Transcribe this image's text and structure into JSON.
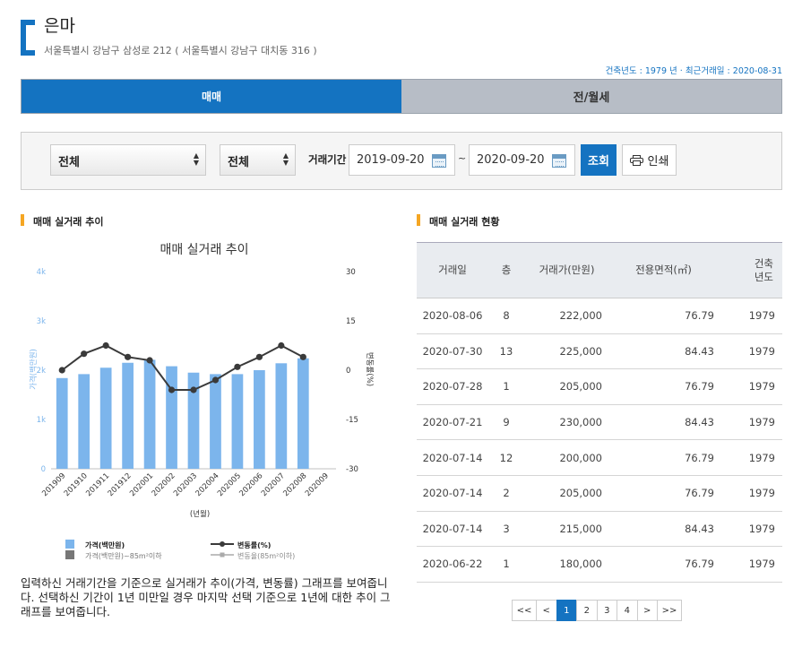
{
  "header": {
    "apt_name": "은마",
    "address": "서울특별시 강남구 삼성로 212 ( 서울특별시 강남구 대치동 316 )",
    "meta": "건축년도 : 1979 년  ·  최근거래일 : 2020-08-31"
  },
  "tabs": [
    {
      "label": "매매",
      "active": true
    },
    {
      "label": "전/월세",
      "active": false
    }
  ],
  "filter": {
    "select1": "전체",
    "select2": "전체",
    "period_label": "거래기간",
    "date_from": "2019-09-20",
    "date_sep": "~",
    "date_to": "2020-09-20",
    "search_label": "조회",
    "print_label": "인쇄"
  },
  "left_section": {
    "title": "매매 실거래 추이",
    "description": "입력하신 거래기간을 기준으로 실거래가 추이(가격, 변동률) 그래프를 보여줍니다. 선택하신 기간이 1년 미만일 경우 마지막 선택 기준으로 1년에 대한 추이 그래프를 보여줍니다."
  },
  "right_section": {
    "title": "매매 실거래 현황"
  },
  "chart_data": {
    "type": "bar",
    "title": "매매 실거래 추이",
    "xlabel": "(년월)",
    "ylabel": "가격(백만원)",
    "y2label": "변동률(%)",
    "categories": [
      "201909",
      "201910",
      "201911",
      "201912",
      "202001",
      "202002",
      "202003",
      "202004",
      "202005",
      "202006",
      "202007",
      "202008",
      "202009"
    ],
    "ylim": [
      0,
      4000
    ],
    "yticks": [
      0,
      1000,
      2000,
      3000,
      4000
    ],
    "ytick_labels": [
      "0",
      "1k",
      "2k",
      "3k",
      "4k"
    ],
    "y2lim": [
      -30,
      30
    ],
    "y2ticks": [
      30,
      15,
      0,
      -15,
      -30
    ],
    "y2tick_labels": [
      "30",
      "15",
      "0",
      "-15",
      "-30"
    ],
    "series": [
      {
        "name": "가격(백만원)",
        "kind": "bar",
        "color": "#7cb5ec",
        "values": [
          1840,
          1920,
          2050,
          2150,
          2210,
          2080,
          1950,
          1920,
          1920,
          2000,
          2140,
          2240,
          null
        ]
      },
      {
        "name": "변동률(%)",
        "kind": "line",
        "color": "#3a3a3a",
        "values": [
          0,
          5,
          7.5,
          4,
          3,
          -6,
          -6,
          -3,
          1,
          4,
          7.5,
          4,
          null
        ]
      }
    ],
    "legend": [
      {
        "label": "가격(백만원)",
        "kind": "bar",
        "color": "#7cb5ec"
      },
      {
        "label": "가격(백만원)~85m²이하",
        "kind": "bar",
        "color": "#777777"
      },
      {
        "label": "변동률(%)",
        "kind": "line",
        "color": "#3a3a3a"
      },
      {
        "label": "변동율(85m²이하)",
        "kind": "line",
        "color": "#aaaaaa"
      }
    ],
    "legend_position": "bottom",
    "grid": false
  },
  "table": {
    "headers": [
      "거래일",
      "층",
      "거래가(만원)",
      "전용면적(㎡)",
      "건축\n년도"
    ],
    "rows": [
      [
        "2020-08-06",
        "8",
        "222,000",
        "76.79",
        "1979"
      ],
      [
        "2020-07-30",
        "13",
        "225,000",
        "84.43",
        "1979"
      ],
      [
        "2020-07-28",
        "1",
        "205,000",
        "76.79",
        "1979"
      ],
      [
        "2020-07-21",
        "9",
        "230,000",
        "84.43",
        "1979"
      ],
      [
        "2020-07-14",
        "12",
        "200,000",
        "76.79",
        "1979"
      ],
      [
        "2020-07-14",
        "2",
        "205,000",
        "76.79",
        "1979"
      ],
      [
        "2020-07-14",
        "3",
        "215,000",
        "84.43",
        "1979"
      ],
      [
        "2020-06-22",
        "1",
        "180,000",
        "76.79",
        "1979"
      ]
    ]
  },
  "pagination": [
    {
      "label": "<<",
      "active": false,
      "wide": true
    },
    {
      "label": "<",
      "active": false,
      "wide": false
    },
    {
      "label": "1",
      "active": true,
      "wide": false
    },
    {
      "label": "2",
      "active": false,
      "wide": false
    },
    {
      "label": "3",
      "active": false,
      "wide": false
    },
    {
      "label": "4",
      "active": false,
      "wide": false
    },
    {
      "label": ">",
      "active": false,
      "wide": false
    },
    {
      "label": ">>",
      "active": false,
      "wide": true
    }
  ],
  "colors": {
    "accent": "#1473c1",
    "section_marker": "#f5a623"
  }
}
